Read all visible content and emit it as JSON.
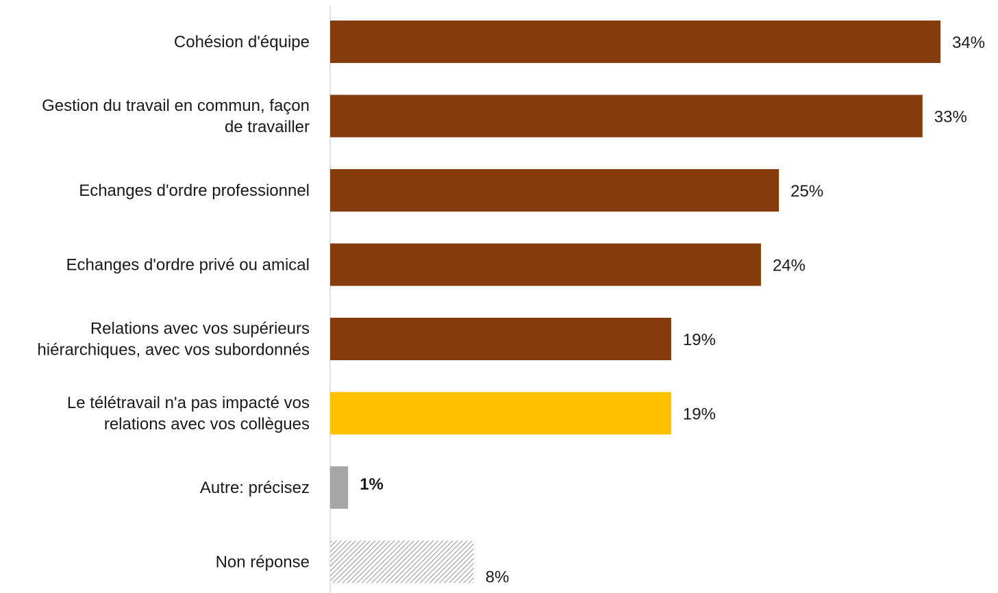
{
  "chart_data": {
    "type": "bar",
    "orientation": "horizontal",
    "title": "",
    "xlabel": "",
    "ylabel": "",
    "xlim": [
      0,
      34
    ],
    "grid": false,
    "legend": "none",
    "value_suffix": "%",
    "categories": [
      "Cohésion d'équipe",
      "Gestion du travail en commun, façon de travailler",
      "Echanges d'ordre professionnel",
      "Echanges d'ordre privé ou amical",
      "Relations avec vos supérieurs hiérarchiques, avec vos subordonnés",
      "Le télétravail n'a pas impacté vos relations avec vos collègues",
      "Autre: précisez",
      "Non réponse"
    ],
    "category_lines": [
      [
        "Cohésion d'équipe"
      ],
      [
        "Gestion du travail en commun, façon",
        "de travailler"
      ],
      [
        "Echanges d'ordre professionnel"
      ],
      [
        "Echanges d'ordre privé ou amical"
      ],
      [
        "Relations avec vos supérieurs",
        "hiérarchiques, avec vos subordonnés"
      ],
      [
        "Le télétravail n'a pas impacté vos",
        "relations avec vos collègues"
      ],
      [
        "Autre: précisez"
      ],
      [
        "Non réponse"
      ]
    ],
    "values": [
      34,
      33,
      25,
      24,
      19,
      19,
      1,
      8
    ],
    "value_labels": [
      "34%",
      "33%",
      "25%",
      "24%",
      "19%",
      "19%",
      "1%",
      "8%"
    ],
    "bar_colors": [
      "#843C0C",
      "#843C0C",
      "#843C0C",
      "#843C0C",
      "#843C0C",
      "#FFC000",
      "#A6A6A6",
      "hatched-gray"
    ],
    "bold_value_labels": [
      false,
      false,
      false,
      false,
      false,
      false,
      true,
      false
    ]
  },
  "colors": {
    "primary_bar": "#843C0C",
    "highlight_bar": "#FFC000",
    "other_bar": "#A6A6A6",
    "hatch_stroke": "#A6A6A6",
    "axis": "#D9D9D9"
  }
}
